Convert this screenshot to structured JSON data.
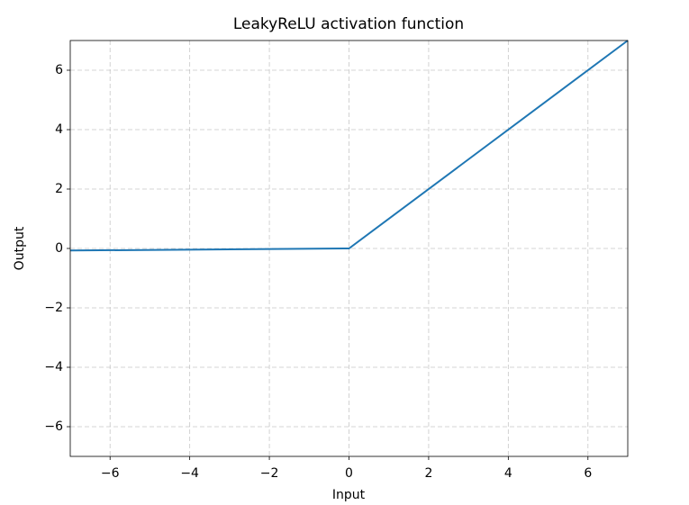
{
  "chart_data": {
    "type": "line",
    "title": "LeakyReLU activation function",
    "x_label": "Input",
    "y_label": "Output",
    "x": [
      -7,
      0,
      7
    ],
    "series": [
      {
        "name": "LeakyReLU",
        "color": "#1f77b4",
        "values": [
          -0.07,
          0,
          7
        ]
      }
    ],
    "xlim": [
      -7,
      7
    ],
    "ylim": [
      -7,
      7
    ],
    "xticks": [
      {
        "value": -6,
        "label": "−6"
      },
      {
        "value": -4,
        "label": "−4"
      },
      {
        "value": -2,
        "label": "−2"
      },
      0,
      2,
      4,
      6
    ],
    "yticks": [
      {
        "value": -6,
        "label": "−6"
      },
      {
        "value": -4,
        "label": "−4"
      },
      {
        "value": -2,
        "label": "−2"
      },
      0,
      2,
      4,
      6
    ],
    "grid": true
  }
}
